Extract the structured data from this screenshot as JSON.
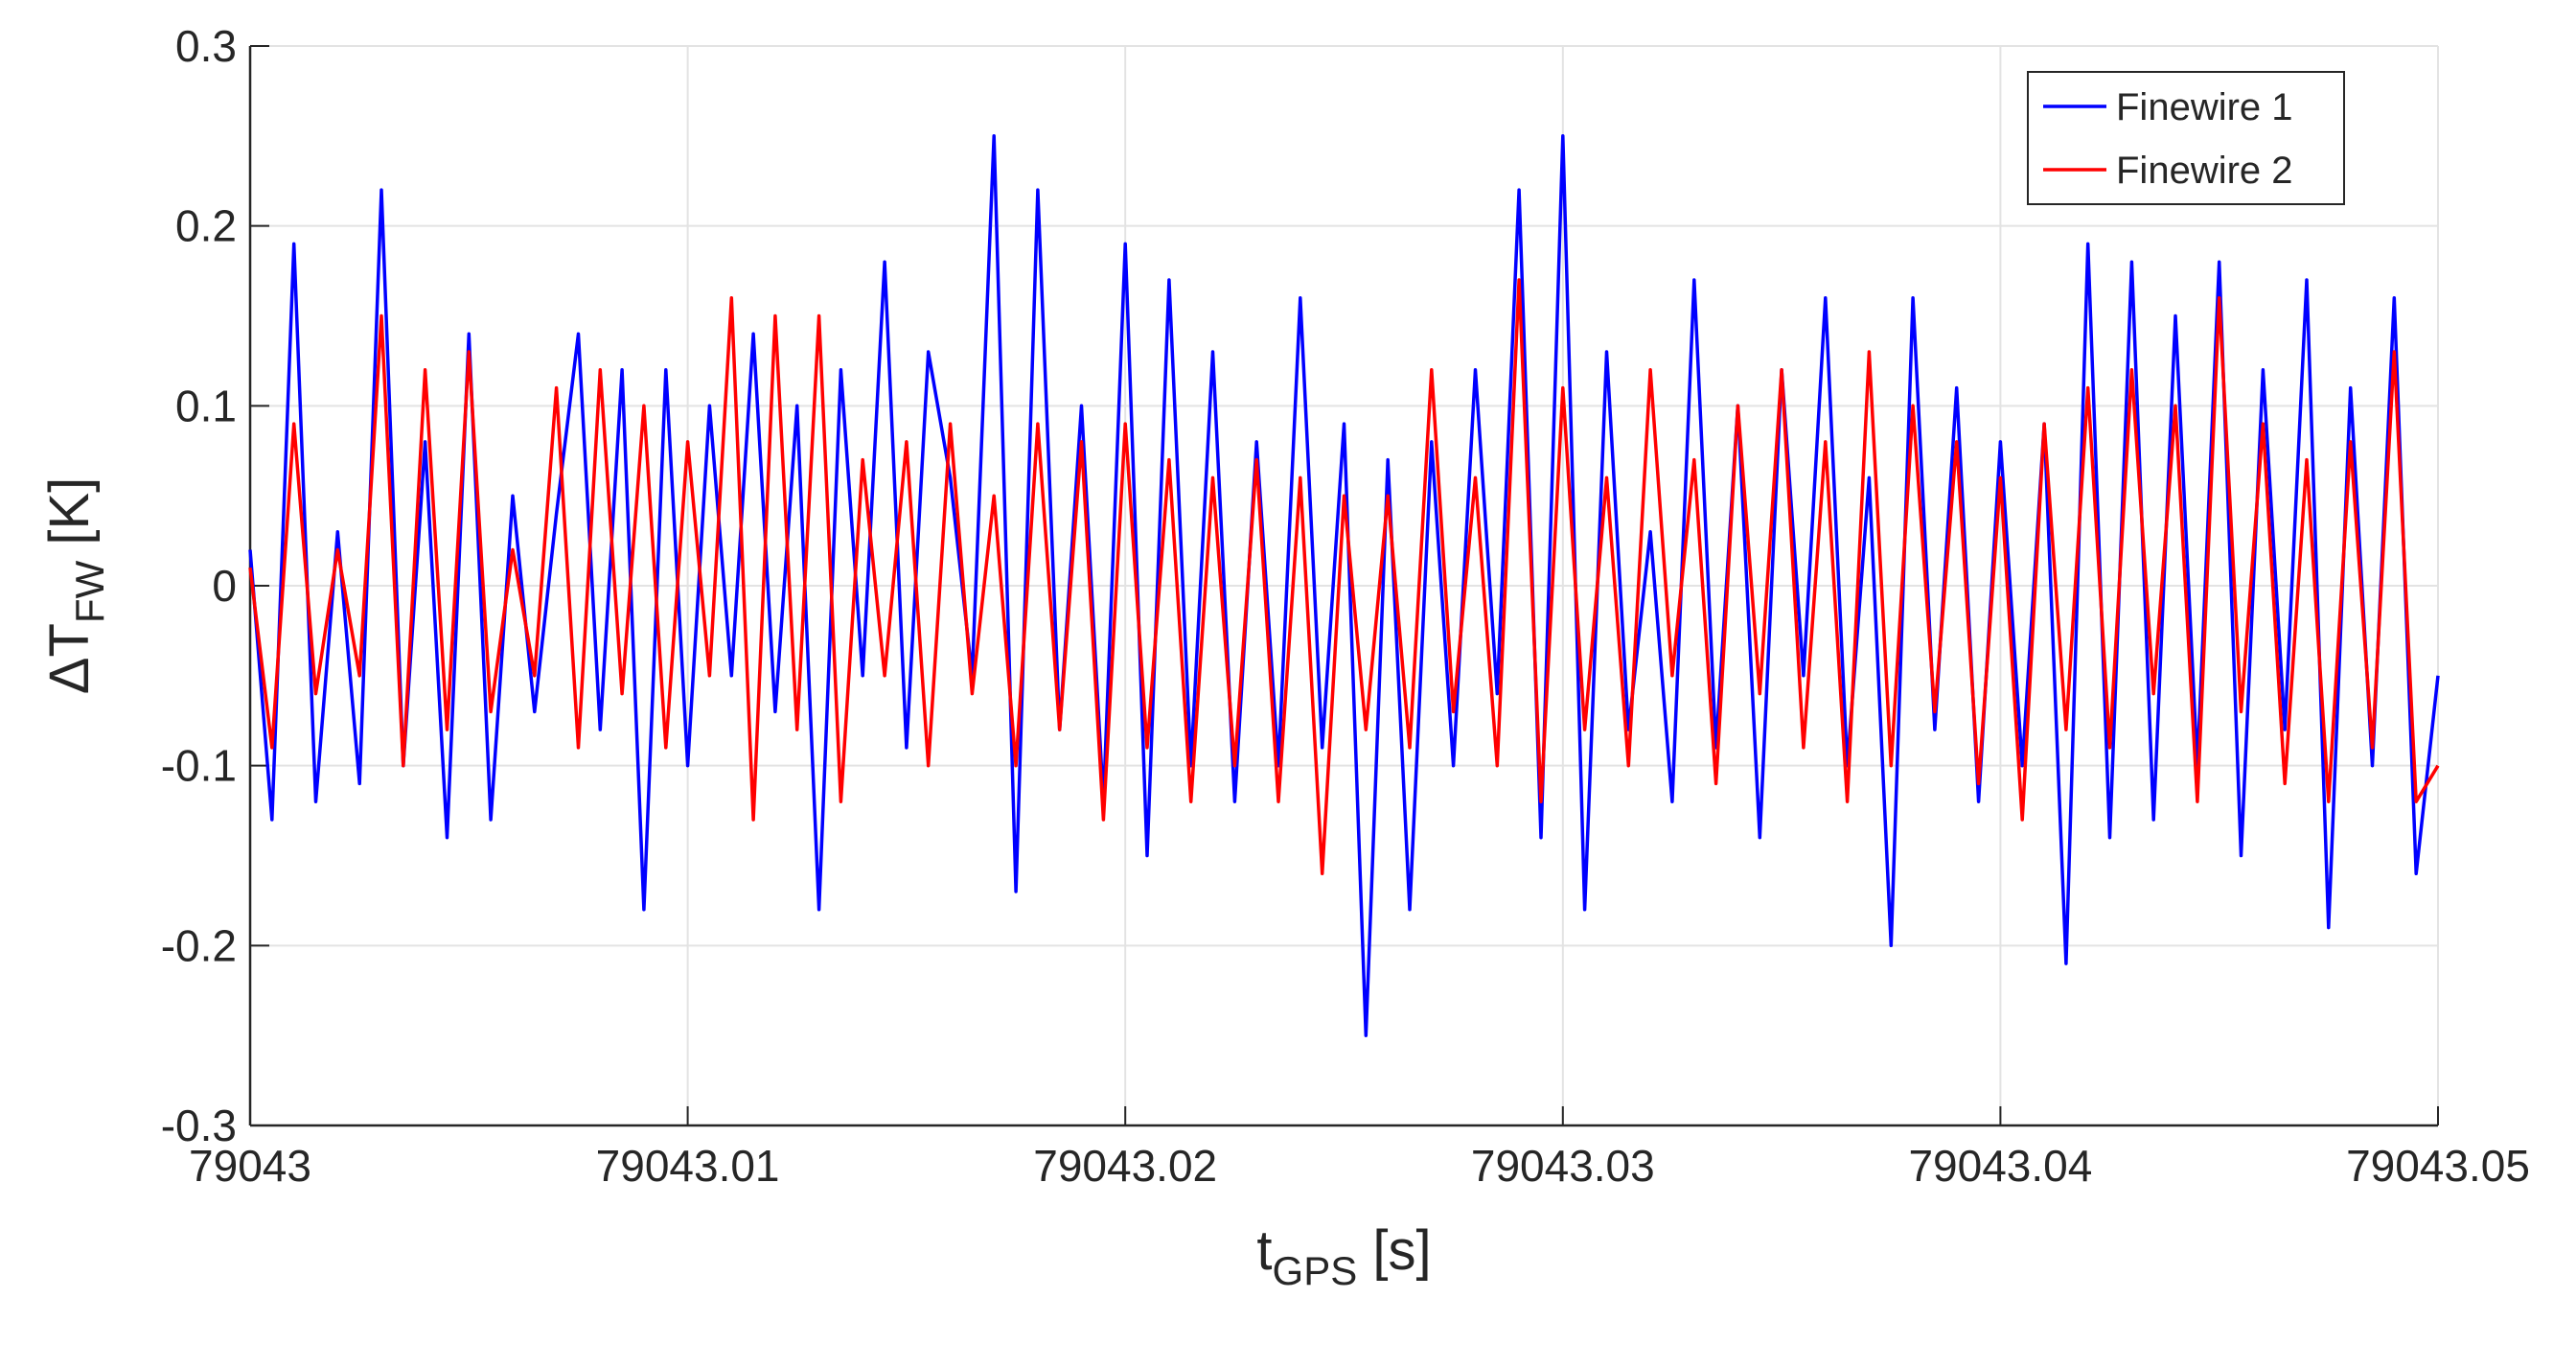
{
  "chart_data": {
    "type": "line",
    "xlabel_parts": [
      "t",
      "GPS",
      " [s]"
    ],
    "ylabel_parts": [
      "ΔT",
      "FW",
      " [K]"
    ],
    "x": [
      79043,
      79043.0005,
      79043.001,
      79043.0015,
      79043.002,
      79043.0025,
      79043.003,
      79043.0035,
      79043.004,
      79043.0045,
      79043.005,
      79043.0055,
      79043.006,
      79043.0065,
      79043.007,
      79043.0075,
      79043.008,
      79043.0085,
      79043.009,
      79043.0095,
      79043.01,
      79043.0105,
      79043.011,
      79043.0115,
      79043.012,
      79043.0125,
      79043.013,
      79043.0135,
      79043.014,
      79043.0145,
      79043.015,
      79043.0155,
      79043.016,
      79043.0165,
      79043.017,
      79043.0175,
      79043.018,
      79043.0185,
      79043.019,
      79043.0195,
      79043.02,
      79043.0205,
      79043.021,
      79043.0215,
      79043.022,
      79043.0225,
      79043.023,
      79043.0235,
      79043.024,
      79043.0245,
      79043.025,
      79043.0255,
      79043.026,
      79043.0265,
      79043.027,
      79043.0275,
      79043.028,
      79043.0285,
      79043.029,
      79043.0295,
      79043.03,
      79043.0305,
      79043.031,
      79043.0315,
      79043.032,
      79043.0325,
      79043.033,
      79043.0335,
      79043.034,
      79043.0345,
      79043.035,
      79043.0355,
      79043.036,
      79043.0365,
      79043.037,
      79043.0375,
      79043.038,
      79043.0385,
      79043.039,
      79043.0395,
      79043.04,
      79043.0405,
      79043.041,
      79043.0415,
      79043.042,
      79043.0425,
      79043.043,
      79043.0435,
      79043.044,
      79043.0445,
      79043.045,
      79043.0455,
      79043.046,
      79043.0465,
      79043.047,
      79043.0475,
      79043.048,
      79043.0485,
      79043.049,
      79043.0495,
      79043.05
    ],
    "series": [
      {
        "name": "Finewire 1",
        "color": "#0000ff",
        "values": [
          0.02,
          -0.13,
          0.19,
          -0.12,
          0.03,
          -0.11,
          0.22,
          -0.1,
          0.08,
          -0.14,
          0.14,
          -0.13,
          0.05,
          -0.07,
          0.04,
          0.14,
          -0.08,
          0.12,
          -0.18,
          0.12,
          -0.1,
          0.1,
          -0.05,
          0.14,
          -0.07,
          0.1,
          -0.18,
          0.12,
          -0.05,
          0.18,
          -0.09,
          0.13,
          0.06,
          -0.05,
          0.25,
          -0.17,
          0.22,
          -0.08,
          0.1,
          -0.12,
          0.19,
          -0.15,
          0.17,
          -0.1,
          0.13,
          -0.12,
          0.08,
          -0.1,
          0.16,
          -0.09,
          0.09,
          -0.25,
          0.07,
          -0.18,
          0.08,
          -0.1,
          0.12,
          -0.06,
          0.22,
          -0.14,
          0.25,
          -0.18,
          0.13,
          -0.08,
          0.03,
          -0.12,
          0.17,
          -0.09,
          0.1,
          -0.14,
          0.12,
          -0.05,
          0.16,
          -0.1,
          0.06,
          -0.2,
          0.16,
          -0.08,
          0.11,
          -0.12,
          0.08,
          -0.1,
          0.09,
          -0.21,
          0.19,
          -0.14,
          0.18,
          -0.13,
          0.15,
          -0.1,
          0.18,
          -0.15,
          0.12,
          -0.08,
          0.17,
          -0.19,
          0.11,
          -0.1,
          0.16,
          -0.16,
          -0.05
        ]
      },
      {
        "name": "Finewire 2",
        "color": "#ff0000",
        "values": [
          0.01,
          -0.09,
          0.09,
          -0.06,
          0.02,
          -0.05,
          0.15,
          -0.1,
          0.12,
          -0.08,
          0.13,
          -0.07,
          0.02,
          -0.05,
          0.11,
          -0.09,
          0.12,
          -0.06,
          0.1,
          -0.09,
          0.08,
          -0.05,
          0.16,
          -0.13,
          0.15,
          -0.08,
          0.15,
          -0.12,
          0.07,
          -0.05,
          0.08,
          -0.1,
          0.09,
          -0.06,
          0.05,
          -0.1,
          0.09,
          -0.08,
          0.08,
          -0.13,
          0.09,
          -0.09,
          0.07,
          -0.12,
          0.06,
          -0.1,
          0.07,
          -0.12,
          0.06,
          -0.16,
          0.05,
          -0.08,
          0.05,
          -0.09,
          0.12,
          -0.07,
          0.06,
          -0.1,
          0.17,
          -0.12,
          0.11,
          -0.08,
          0.06,
          -0.1,
          0.12,
          -0.05,
          0.07,
          -0.11,
          0.1,
          -0.06,
          0.12,
          -0.09,
          0.08,
          -0.12,
          0.13,
          -0.1,
          0.1,
          -0.07,
          0.08,
          -0.11,
          0.06,
          -0.13,
          0.09,
          -0.08,
          0.11,
          -0.09,
          0.12,
          -0.06,
          0.1,
          -0.12,
          0.16,
          -0.07,
          0.09,
          -0.11,
          0.07,
          -0.12,
          0.08,
          -0.09,
          0.13,
          -0.12,
          -0.1
        ]
      }
    ],
    "xlim": [
      79043,
      79043.05
    ],
    "xticks": [
      79043,
      79043.01,
      79043.02,
      79043.03,
      79043.04,
      79043.05
    ],
    "ylim": [
      -0.3,
      0.3
    ],
    "yticks": [
      -0.3,
      -0.2,
      -0.1,
      0,
      0.1,
      0.2,
      0.3
    ],
    "grid": true,
    "legend": "top-right"
  }
}
